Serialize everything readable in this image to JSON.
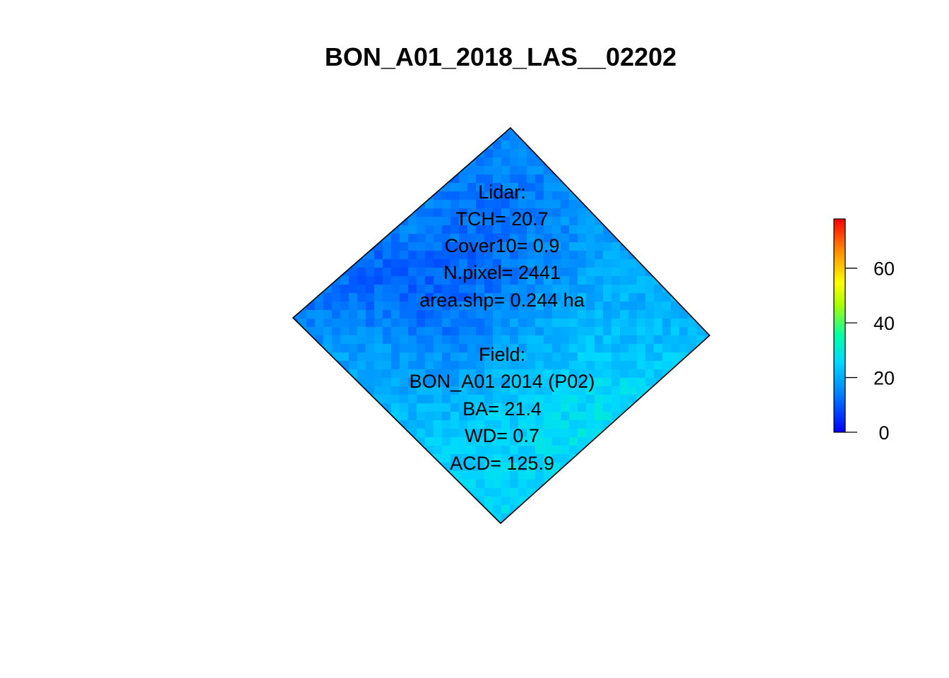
{
  "chart_data": {
    "type": "heatmap",
    "title": "BON_A01_2018_LAS__02202",
    "xlabel": "",
    "ylabel": "",
    "legend": {
      "placement": "right",
      "colormap": "rainbow (blue to red)",
      "range": [
        0,
        78
      ],
      "ticks": [
        "0",
        "20",
        "40",
        "60"
      ],
      "colors": [
        "#0000FF",
        "#00BFFF",
        "#00FFAA",
        "#FFFF00",
        "#FF8C00",
        "#FF0000"
      ]
    },
    "region_mean_values": {
      "top_band": 16,
      "left_band": 14,
      "center_dark": 5,
      "lower_right_bright": 31,
      "lower_left_bright": 27,
      "bottom_tip": 24
    },
    "annotations": {
      "lidar": [
        "Lidar:",
        "TCH= 20.7",
        "Cover10= 0.9",
        "N.pixel= 2441",
        "area.shp= 0.244 ha"
      ],
      "field": [
        "Field:",
        "BON_A01 2014 (P02)",
        "BA= 21.4",
        "WD= 0.7",
        "ACD= 125.9"
      ]
    }
  }
}
